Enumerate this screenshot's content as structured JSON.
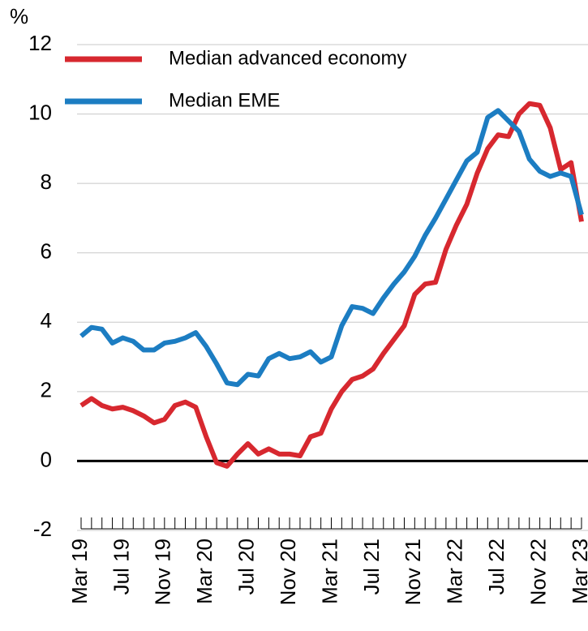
{
  "chart_data": {
    "type": "line",
    "y_label": "%",
    "categories": [
      "Mar 19",
      null,
      null,
      null,
      "Jul 19",
      null,
      null,
      null,
      "Nov 19",
      null,
      null,
      null,
      "Mar 20",
      null,
      null,
      null,
      "Jul 20",
      null,
      null,
      null,
      "Nov 20",
      null,
      null,
      null,
      "Mar 21",
      null,
      null,
      null,
      "Jul 21",
      null,
      null,
      null,
      "Nov 21",
      null,
      null,
      null,
      "Mar 22",
      null,
      null,
      null,
      "Jul 22",
      null,
      null,
      null,
      "Nov 22",
      null,
      null,
      null,
      "Mar 23"
    ],
    "series": [
      {
        "name": "Median advanced economy",
        "color": "#d7282f",
        "values": [
          1.6,
          1.8,
          1.6,
          1.5,
          1.55,
          1.45,
          1.3,
          1.1,
          1.2,
          1.6,
          1.7,
          1.55,
          0.7,
          -0.05,
          -0.15,
          0.2,
          0.5,
          0.2,
          0.35,
          0.2,
          0.2,
          0.15,
          0.7,
          0.8,
          1.5,
          2.0,
          2.35,
          2.45,
          2.65,
          3.1,
          3.5,
          3.9,
          4.8,
          5.1,
          5.15,
          6.1,
          6.8,
          7.4,
          8.3,
          9.0,
          9.4,
          9.35,
          10.0,
          10.3,
          10.25,
          9.6,
          8.4,
          8.6,
          6.9
        ]
      },
      {
        "name": "Median EME",
        "color": "#1c7dc2",
        "values": [
          3.6,
          3.85,
          3.8,
          3.4,
          3.55,
          3.45,
          3.2,
          3.2,
          3.4,
          3.45,
          3.55,
          3.7,
          3.3,
          2.8,
          2.25,
          2.2,
          2.5,
          2.45,
          2.95,
          3.1,
          2.95,
          3.0,
          3.15,
          2.85,
          3.0,
          3.9,
          4.45,
          4.4,
          4.25,
          4.7,
          5.1,
          5.45,
          5.9,
          6.5,
          7.0,
          7.55,
          8.1,
          8.65,
          8.9,
          9.9,
          10.1,
          9.8,
          9.5,
          8.7,
          8.35,
          8.2,
          8.3,
          8.2,
          7.1
        ]
      }
    ],
    "ylim": [
      -2,
      12
    ],
    "yticks": [
      -2,
      0,
      2,
      4,
      6,
      8,
      10,
      12
    ],
    "grid": true
  }
}
